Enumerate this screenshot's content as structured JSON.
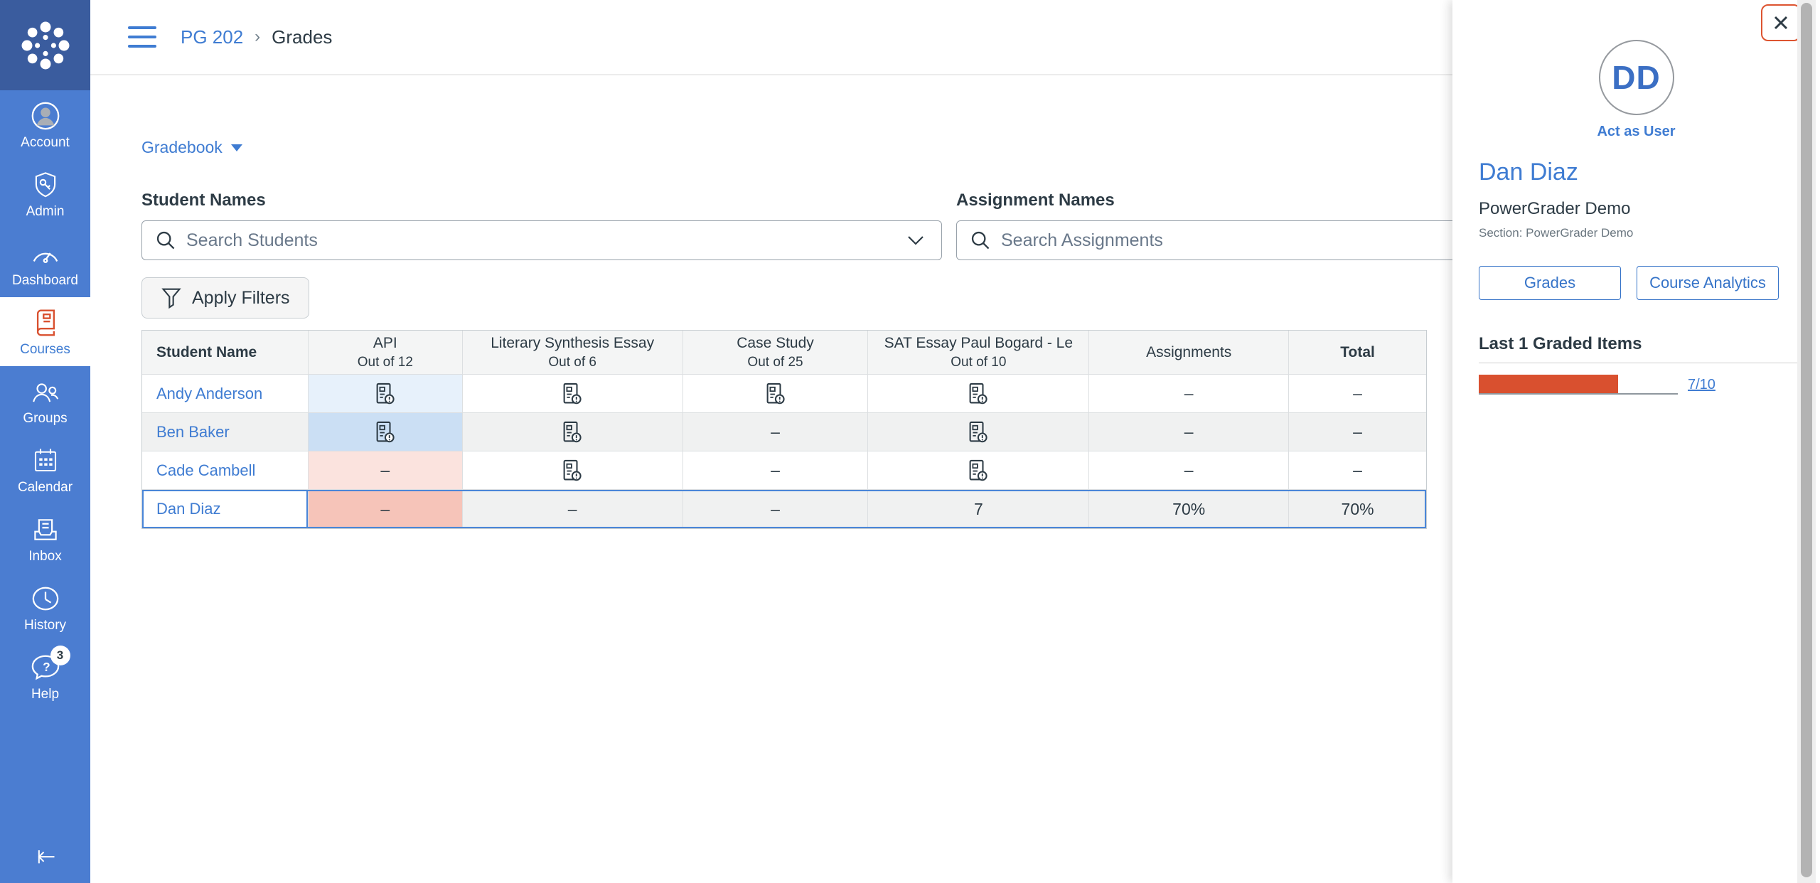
{
  "sidebar": {
    "items": [
      {
        "label": "Account",
        "icon": "account-icon"
      },
      {
        "label": "Admin",
        "icon": "admin-shield-icon"
      },
      {
        "label": "Dashboard",
        "icon": "dashboard-gauge-icon"
      },
      {
        "label": "Courses",
        "icon": "courses-book-icon",
        "active": true
      },
      {
        "label": "Groups",
        "icon": "groups-people-icon"
      },
      {
        "label": "Calendar",
        "icon": "calendar-icon"
      },
      {
        "label": "Inbox",
        "icon": "inbox-icon"
      },
      {
        "label": "History",
        "icon": "history-clock-icon"
      },
      {
        "label": "Help",
        "icon": "help-question-icon",
        "badge": "3"
      }
    ],
    "collapse_icon": "collapse-sidebar-icon"
  },
  "header": {
    "hamburger_icon": "hamburger-menu-icon",
    "breadcrumb_course": "PG 202",
    "breadcrumb_separator": "›",
    "breadcrumb_page": "Grades"
  },
  "toolbar": {
    "gradebook_label": "Gradebook",
    "keyboard_icon": "keyboard-shortcuts-icon"
  },
  "filters": {
    "student_label": "Student Names",
    "student_placeholder": "Search Students",
    "assignment_label": "Assignment Names",
    "assignment_placeholder": "Search Assignments",
    "apply_button": "Apply Filters",
    "filter_icon": "funnel-icon"
  },
  "table": {
    "empty_symbol": "–",
    "pending_icon": "submission-pending-icon",
    "columns": [
      {
        "label": "Student Name"
      },
      {
        "label": "API",
        "sub": "Out of 12"
      },
      {
        "label": "Literary Synthesis Essay",
        "sub": "Out of 6"
      },
      {
        "label": "Case Study",
        "sub": "Out of 25"
      },
      {
        "label": "SAT Essay Paul Bogard - Le",
        "sub": "Out of 10"
      },
      {
        "label": "Assignments"
      },
      {
        "label": "Total"
      }
    ],
    "rows": [
      {
        "name": "Andy Anderson",
        "selected": false,
        "cells": [
          {
            "t": "icon",
            "bg": "#e7f1fb"
          },
          {
            "t": "icon"
          },
          {
            "t": "icon"
          },
          {
            "t": "icon"
          },
          {
            "t": "dash"
          },
          {
            "t": "dash"
          }
        ]
      },
      {
        "name": "Ben Baker",
        "selected": false,
        "cells": [
          {
            "t": "icon",
            "bg": "#cbdff4"
          },
          {
            "t": "icon"
          },
          {
            "t": "dash"
          },
          {
            "t": "icon"
          },
          {
            "t": "dash"
          },
          {
            "t": "dash"
          }
        ]
      },
      {
        "name": "Cade Cambell",
        "selected": false,
        "cells": [
          {
            "t": "dash",
            "bg": "#fbe3de"
          },
          {
            "t": "icon"
          },
          {
            "t": "dash"
          },
          {
            "t": "icon"
          },
          {
            "t": "dash"
          },
          {
            "t": "dash"
          }
        ]
      },
      {
        "name": "Dan Diaz",
        "selected": true,
        "cells": [
          {
            "t": "dash",
            "bg": "#f6c4b9"
          },
          {
            "t": "dash"
          },
          {
            "t": "dash"
          },
          {
            "t": "text",
            "v": "7"
          },
          {
            "t": "text",
            "v": "70%"
          },
          {
            "t": "text",
            "v": "70%"
          }
        ]
      }
    ]
  },
  "tray": {
    "close_icon": "close-icon",
    "avatar_initials": "DD",
    "act_as_user": "Act as User",
    "student_name": "Dan Diaz",
    "course_name": "PowerGrader Demo",
    "section": "Section: PowerGrader Demo",
    "grades_button": "Grades",
    "analytics_button": "Course Analytics",
    "graded_items_heading": "Last 1 Graded Items",
    "graded_score": "7/10",
    "progress_percent": 70
  },
  "colors": {
    "accent_orange": "#D9502F",
    "link_blue": "#3f7cd2",
    "selection_blue": "#4a86d8",
    "sidebar_blue": "#4b7dd1",
    "sidebar_logo_blue": "#3a5c9e"
  }
}
